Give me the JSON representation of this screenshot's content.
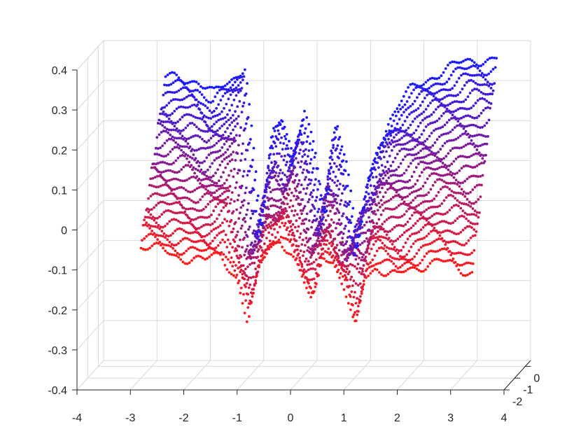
{
  "chart_data": {
    "type": "scatter",
    "projection": "3d",
    "title": "",
    "xlabel": "",
    "ylabel": "",
    "zlabel": "",
    "grid": true,
    "xlim": [
      -4,
      4
    ],
    "ylim": [
      -2,
      0.5
    ],
    "zlim": [
      -0.4,
      0.4
    ],
    "x_ticks": [
      "-4",
      "-3",
      "-2",
      "-1",
      "0",
      "1",
      "2",
      "3",
      "4"
    ],
    "y_ticks": [
      "-2",
      "-1",
      "0"
    ],
    "z_ticks": [
      "-0.4",
      "-0.3",
      "-0.2",
      "-0.1",
      "0",
      "0.1",
      "0.2",
      "0.3",
      "0.4"
    ],
    "color_gradient": {
      "front": "#ff1a1a",
      "back": "#1a1aff"
    },
    "x_start": -2.8,
    "x_end": 3.4,
    "front_profile": {
      "x": [
        -2.8,
        -2.5,
        -2.2,
        -1.9,
        -1.6,
        -1.3,
        -1.0,
        -0.8,
        -0.6,
        -0.4,
        -0.2,
        0.0,
        0.2,
        0.4,
        0.6,
        0.8,
        1.0,
        1.2,
        1.4,
        1.6,
        1.8,
        2.0,
        2.2,
        2.4,
        2.6,
        2.8,
        3.0,
        3.2,
        3.4
      ],
      "z": [
        -0.04,
        -0.05,
        -0.06,
        -0.07,
        -0.08,
        -0.06,
        -0.12,
        -0.24,
        -0.1,
        -0.04,
        -0.02,
        -0.06,
        -0.12,
        -0.18,
        -0.05,
        -0.08,
        -0.15,
        -0.25,
        -0.11,
        -0.09,
        -0.11,
        -0.12,
        -0.1,
        -0.09,
        -0.08,
        -0.08,
        -0.09,
        -0.1,
        -0.1
      ]
    },
    "back_profile": {
      "x": [
        -2.8,
        -2.5,
        -2.2,
        -1.9,
        -1.6,
        -1.3,
        -1.0,
        -0.8,
        -0.6,
        -0.4,
        -0.2,
        0.0,
        0.2,
        0.4,
        0.6,
        0.8,
        1.0,
        1.2,
        1.4,
        1.6,
        1.8,
        2.0,
        2.2,
        2.4,
        2.6,
        2.8,
        3.0,
        3.2,
        3.4
      ],
      "z": [
        0.31,
        0.31,
        0.31,
        0.27,
        0.3,
        0.35,
        -0.08,
        0.17,
        0.22,
        0.12,
        0.23,
        0.12,
        -0.04,
        0.22,
        0.1,
        -0.12,
        0.05,
        0.15,
        0.21,
        0.25,
        0.28,
        0.3,
        0.32,
        0.33,
        0.34,
        0.35,
        0.36,
        0.36,
        0.36
      ]
    },
    "series": [
      {
        "y": -2.0
      },
      {
        "y": -1.9
      },
      {
        "y": -1.8
      },
      {
        "y": -1.7
      },
      {
        "y": -1.6
      },
      {
        "y": -1.5
      },
      {
        "y": -1.4
      },
      {
        "y": -1.3
      },
      {
        "y": -1.2
      },
      {
        "y": -1.1
      },
      {
        "y": -1.0
      },
      {
        "y": -0.9
      },
      {
        "y": -0.8
      },
      {
        "y": -0.7
      },
      {
        "y": -0.6
      },
      {
        "y": -0.5
      },
      {
        "y": -0.4
      },
      {
        "y": -0.3
      },
      {
        "y": -0.2
      },
      {
        "y": -0.1
      },
      {
        "y": 0.0
      },
      {
        "y": 0.1
      },
      {
        "y": 0.2
      },
      {
        "y": 0.3
      }
    ]
  }
}
